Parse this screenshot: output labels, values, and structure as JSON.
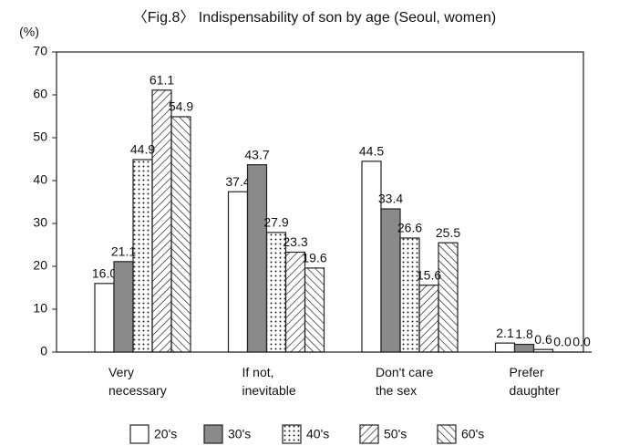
{
  "chart_data": {
    "type": "bar",
    "title": "〈Fig.8〉   Indispensability of son by age (Seoul, women)",
    "y_label": "(%)",
    "categories": [
      "Very\nnecessary",
      "If not,\ninevitable",
      "Don't care\nthe sex",
      "Prefer\ndaughter"
    ],
    "series": [
      {
        "name": "20's",
        "color": "#ffffff",
        "pattern": "solid",
        "values": [
          16.0,
          37.4,
          44.5,
          2.1
        ],
        "value_labels": [
          "16.0",
          "37.4",
          "44.5",
          "2.1"
        ]
      },
      {
        "name": "30's",
        "color": "#8a8a8a",
        "pattern": "solid",
        "values": [
          21.1,
          43.7,
          33.4,
          1.8
        ],
        "value_labels": [
          "21.1",
          "43.7",
          "33.4",
          "1.8"
        ]
      },
      {
        "name": "40's",
        "color": "#ffffff",
        "pattern": "dots",
        "values": [
          44.9,
          27.9,
          26.6,
          0.6
        ],
        "value_labels": [
          "44.9",
          "27.9",
          "26.6",
          "0.6"
        ]
      },
      {
        "name": "50's",
        "color": "#ffffff",
        "pattern": "hatch-up",
        "values": [
          61.1,
          23.3,
          15.6,
          0.0
        ],
        "value_labels": [
          "61.1",
          "23.3",
          "15.6",
          "0.0"
        ]
      },
      {
        "name": "60's",
        "color": "#ffffff",
        "pattern": "hatch-down",
        "values": [
          54.9,
          19.6,
          25.5,
          0.0
        ],
        "value_labels": [
          "54.9",
          "19.6",
          "25.5",
          "0.0"
        ]
      }
    ],
    "ylim": [
      0,
      70
    ],
    "yticks": [
      0,
      10,
      20,
      30,
      40,
      50,
      60,
      70
    ],
    "grid": false,
    "legend": "bottom"
  }
}
